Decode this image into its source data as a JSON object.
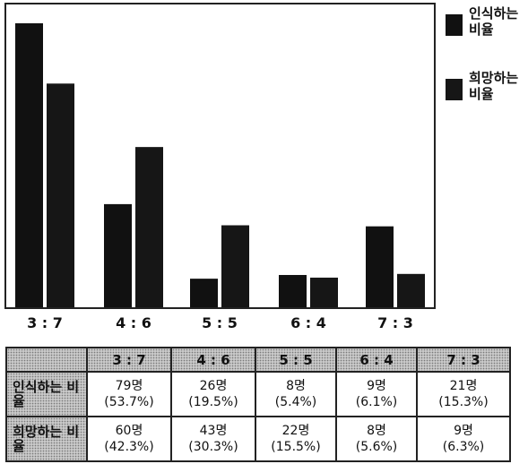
{
  "colors": {
    "series_1": "#111111",
    "series_2": "#161616",
    "axis": "#222222",
    "hatch": "#c9c9c9"
  },
  "chart_data": {
    "type": "bar",
    "categories": [
      "3 : 7",
      "4 : 6",
      "5 : 5",
      "6 : 4",
      "7 : 3"
    ],
    "series": [
      {
        "name": "인식하는 비율",
        "values": [
          53.7,
          19.5,
          5.4,
          6.1,
          15.3
        ]
      },
      {
        "name": "희망하는 비율",
        "values": [
          42.3,
          30.3,
          15.5,
          5.6,
          6.3
        ]
      }
    ],
    "ylim": [
      0,
      55
    ],
    "grid": false,
    "legend": "right"
  },
  "legend": [
    {
      "label": "인식하는 비율"
    },
    {
      "label": "희망하는 비율"
    }
  ],
  "table": {
    "columns": [
      "3 : 7",
      "4 : 6",
      "5 : 5",
      "6 : 4",
      "7 : 3"
    ],
    "rows": [
      {
        "header": "인식하는 비율",
        "cells": [
          {
            "count": "79명",
            "pct": "(53.7%)"
          },
          {
            "count": "26명",
            "pct": "(19.5%)"
          },
          {
            "count": "8명",
            "pct": "(5.4%)"
          },
          {
            "count": "9명",
            "pct": "(6.1%)"
          },
          {
            "count": "21명",
            "pct": "(15.3%)"
          }
        ]
      },
      {
        "header": "희망하는 비율",
        "cells": [
          {
            "count": "60명",
            "pct": "(42.3%)"
          },
          {
            "count": "43명",
            "pct": "(30.3%)"
          },
          {
            "count": "22명",
            "pct": "(15.5%)"
          },
          {
            "count": "8명",
            "pct": "(5.6%)"
          },
          {
            "count": "9명",
            "pct": "(6.3%)"
          }
        ]
      }
    ]
  }
}
